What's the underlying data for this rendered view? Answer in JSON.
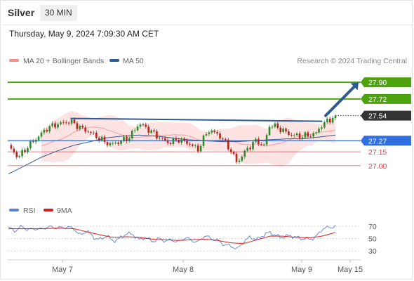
{
  "header": {
    "instrument": "Silver",
    "timeframe": "30 MIN",
    "timestamp": "Thursday, May 9, 2024 7:09:30 AM CET"
  },
  "colors": {
    "bollinger": "#f0908e",
    "bollinger_fill": "#fde3e2",
    "ma50": "#2e5b93",
    "resistance": "#4ca30d",
    "support": "#e0404a",
    "pivot": "#2f6fdf",
    "last_price": "#333333",
    "candle_up": "#2c8a2c",
    "candle_down": "#b3261e",
    "rsi": "#5b82d6",
    "rsi_ma": "#d62020"
  },
  "chart_data": [
    {
      "type": "candlestick",
      "title": "Silver",
      "timeframe": "30 MIN",
      "legend": [
        {
          "name": "MA 20 + Bollinger Bands",
          "color": "#f0908e"
        },
        {
          "name": "MA 50",
          "color": "#2e5b93"
        }
      ],
      "credit": "Research © 2024 Trading Central",
      "x_ticks": [
        "May 7",
        "May 8",
        "May 9",
        "May 15"
      ],
      "ylim": [
        26.65,
        28.0
      ],
      "levels": [
        {
          "value": 27.9,
          "label": "27.90",
          "kind": "resistance"
        },
        {
          "value": 27.72,
          "label": "27.72",
          "kind": "resistance"
        },
        {
          "value": 27.54,
          "label": "27.54",
          "kind": "last"
        },
        {
          "value": 27.27,
          "label": "27.27",
          "kind": "pivot"
        },
        {
          "value": 27.15,
          "label": "27.15",
          "kind": "support"
        },
        {
          "value": 27.0,
          "label": "27.00",
          "kind": "support"
        }
      ],
      "trendline": {
        "from_t": 0.19,
        "from_value": 27.51,
        "to_t": 0.96,
        "to_value": 27.48
      },
      "arrow": {
        "from_t": 0.97,
        "from_value": 27.54,
        "to_value": 27.9
      },
      "key_points": [
        [
          0.0,
          27.2
        ],
        [
          0.03,
          27.08
        ],
        [
          0.06,
          27.2
        ],
        [
          0.09,
          27.3
        ],
        [
          0.12,
          27.4
        ],
        [
          0.15,
          27.44
        ],
        [
          0.19,
          27.47
        ],
        [
          0.22,
          27.4
        ],
        [
          0.25,
          27.35
        ],
        [
          0.28,
          27.28
        ],
        [
          0.31,
          27.22
        ],
        [
          0.34,
          27.25
        ],
        [
          0.37,
          27.3
        ],
        [
          0.4,
          27.45
        ],
        [
          0.43,
          27.38
        ],
        [
          0.46,
          27.3
        ],
        [
          0.49,
          27.24
        ],
        [
          0.52,
          27.28
        ],
        [
          0.55,
          27.24
        ],
        [
          0.58,
          27.17
        ],
        [
          0.61,
          27.38
        ],
        [
          0.64,
          27.34
        ],
        [
          0.67,
          27.22
        ],
        [
          0.7,
          27.03
        ],
        [
          0.73,
          27.18
        ],
        [
          0.76,
          27.28
        ],
        [
          0.78,
          27.2
        ],
        [
          0.8,
          27.45
        ],
        [
          0.83,
          27.4
        ],
        [
          0.86,
          27.34
        ],
        [
          0.89,
          27.32
        ],
        [
          0.92,
          27.33
        ],
        [
          0.94,
          27.35
        ],
        [
          0.96,
          27.45
        ],
        [
          1.0,
          27.54
        ]
      ],
      "ma50_points": [
        [
          0.0,
          26.91
        ],
        [
          0.05,
          27.0
        ],
        [
          0.1,
          27.09
        ],
        [
          0.15,
          27.16
        ],
        [
          0.2,
          27.22
        ],
        [
          0.25,
          27.26
        ],
        [
          0.3,
          27.3
        ],
        [
          0.35,
          27.32
        ],
        [
          0.4,
          27.33
        ],
        [
          0.45,
          27.32
        ],
        [
          0.5,
          27.3
        ],
        [
          0.55,
          27.28
        ],
        [
          0.6,
          27.27
        ],
        [
          0.65,
          27.26
        ],
        [
          0.7,
          27.26
        ],
        [
          0.75,
          27.27
        ],
        [
          0.8,
          27.28
        ],
        [
          0.85,
          27.29
        ],
        [
          0.9,
          27.29
        ],
        [
          0.95,
          27.31
        ],
        [
          1.0,
          27.33
        ]
      ]
    },
    {
      "type": "line",
      "legend": [
        {
          "name": "RSI",
          "color": "#5b82d6"
        },
        {
          "name": "9MA",
          "color": "#d62020"
        }
      ],
      "ylim": [
        20,
        78
      ],
      "y_ticks": [
        70,
        50,
        30
      ],
      "series": [
        {
          "name": "RSI",
          "values": [
            [
              0.0,
              68
            ],
            [
              0.02,
              62
            ],
            [
              0.04,
              70
            ],
            [
              0.06,
              64
            ],
            [
              0.08,
              66
            ],
            [
              0.1,
              65
            ],
            [
              0.12,
              69
            ],
            [
              0.14,
              68
            ],
            [
              0.16,
              67
            ],
            [
              0.18,
              69
            ],
            [
              0.2,
              66
            ],
            [
              0.22,
              55
            ],
            [
              0.24,
              63
            ],
            [
              0.26,
              52
            ],
            [
              0.28,
              48
            ],
            [
              0.3,
              55
            ],
            [
              0.32,
              46
            ],
            [
              0.34,
              50
            ],
            [
              0.36,
              58
            ],
            [
              0.38,
              57
            ],
            [
              0.4,
              48
            ],
            [
              0.42,
              52
            ],
            [
              0.44,
              45
            ],
            [
              0.46,
              50
            ],
            [
              0.48,
              46
            ],
            [
              0.5,
              48
            ],
            [
              0.52,
              44
            ],
            [
              0.54,
              52
            ],
            [
              0.56,
              47
            ],
            [
              0.58,
              44
            ],
            [
              0.6,
              55
            ],
            [
              0.62,
              50
            ],
            [
              0.64,
              47
            ],
            [
              0.66,
              40
            ],
            [
              0.68,
              38
            ],
            [
              0.7,
              33
            ],
            [
              0.72,
              45
            ],
            [
              0.74,
              53
            ],
            [
              0.76,
              48
            ],
            [
              0.78,
              56
            ],
            [
              0.8,
              60
            ],
            [
              0.82,
              54
            ],
            [
              0.84,
              52
            ],
            [
              0.86,
              55
            ],
            [
              0.88,
              52
            ],
            [
              0.9,
              50
            ],
            [
              0.92,
              49
            ],
            [
              0.94,
              52
            ],
            [
              0.96,
              66
            ],
            [
              1.0,
              70
            ]
          ]
        },
        {
          "name": "9MA",
          "values": [
            [
              0.0,
              66
            ],
            [
              0.05,
              66
            ],
            [
              0.1,
              66
            ],
            [
              0.15,
              67
            ],
            [
              0.2,
              66
            ],
            [
              0.24,
              61
            ],
            [
              0.28,
              56
            ],
            [
              0.32,
              52
            ],
            [
              0.36,
              53
            ],
            [
              0.4,
              52
            ],
            [
              0.44,
              49
            ],
            [
              0.48,
              48
            ],
            [
              0.52,
              47
            ],
            [
              0.56,
              48
            ],
            [
              0.6,
              49
            ],
            [
              0.64,
              47
            ],
            [
              0.68,
              43
            ],
            [
              0.72,
              42
            ],
            [
              0.76,
              48
            ],
            [
              0.8,
              54
            ],
            [
              0.84,
              54
            ],
            [
              0.88,
              52
            ],
            [
              0.92,
              51
            ],
            [
              0.96,
              54
            ],
            [
              1.0,
              60
            ]
          ]
        }
      ]
    }
  ]
}
